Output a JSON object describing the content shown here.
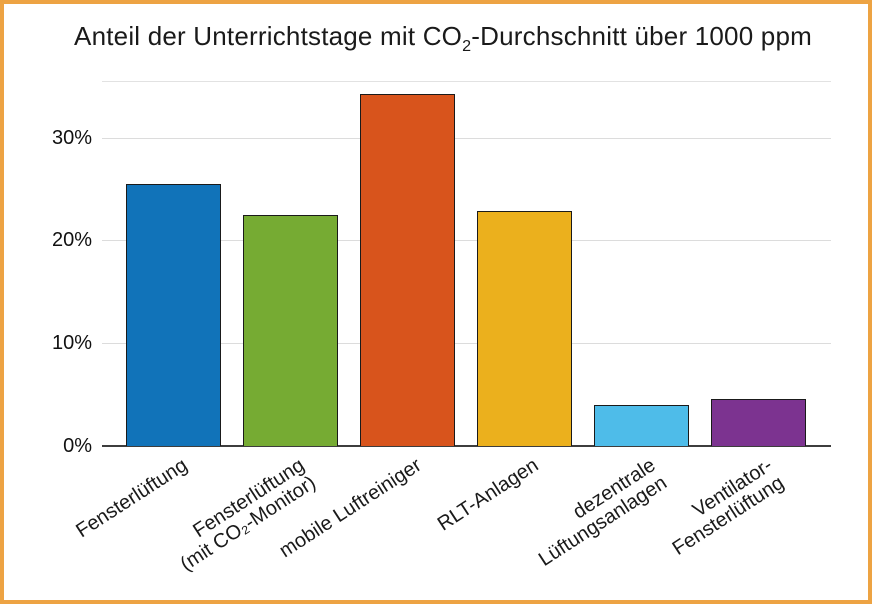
{
  "frame": {
    "border_color": "#eda343",
    "background_color": "#ffffff"
  },
  "title": {
    "pre": "Anteil der Unterrichtstage mit CO",
    "sub": "2",
    "post": "-Durchschnitt über 1000 ppm"
  },
  "chart_data": {
    "type": "bar",
    "title": "Anteil der Unterrichtstage mit CO₂-Durchschnitt über 1000 ppm",
    "categories": [
      [
        "Fensterlüftung"
      ],
      [
        "Fensterlüftung",
        "(mit CO₂-Monitor)"
      ],
      [
        "mobile Luftreiniger"
      ],
      [
        "RLT-Anlagen"
      ],
      [
        "dezentrale",
        "Lüftungsanlagen"
      ],
      [
        "Ventilator-",
        "Fensterlüftung"
      ]
    ],
    "values": [
      25.5,
      22.5,
      34.2,
      22.9,
      4.0,
      4.6
    ],
    "colors": [
      "#1173b9",
      "#76ab33",
      "#d8541c",
      "#ebb01d",
      "#4ebce9",
      "#7c3390"
    ],
    "bar_border_color": "#1a1a1a",
    "yticks": [
      0,
      10,
      20,
      30
    ],
    "ytick_labels": [
      "0%",
      "10%",
      "20%",
      "30%"
    ],
    "ylim": [
      0,
      35.4
    ],
    "xlabel": "",
    "ylabel": "",
    "grid": true,
    "gridline_color": "#dcdcdc",
    "axis_line_color": "#3d3d3d",
    "legend": "none"
  }
}
